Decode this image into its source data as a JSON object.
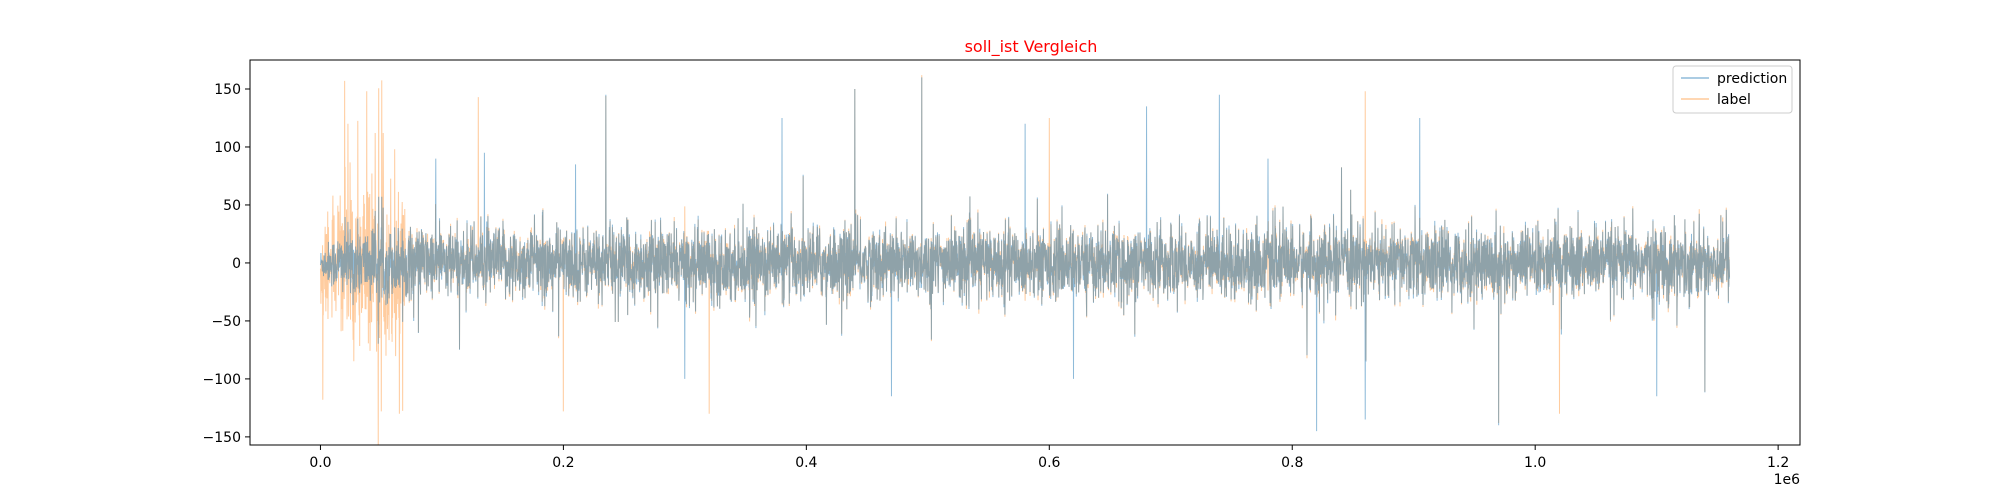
{
  "chart_data": {
    "type": "line",
    "title": "soll_ist Vergleich",
    "title_color": "#ff0000",
    "xlabel": "",
    "ylabel": "",
    "x_offset_label": "1e6",
    "xlim": [
      -0.058,
      1.218
    ],
    "ylim": [
      -157,
      175
    ],
    "x_ticks": [
      0.0,
      0.2,
      0.4,
      0.6,
      0.8,
      1.0,
      1.2
    ],
    "x_tick_labels": [
      "0.0",
      "0.2",
      "0.4",
      "0.6",
      "0.8",
      "1.0",
      "1.2"
    ],
    "y_ticks": [
      -150,
      -100,
      -50,
      0,
      50,
      100,
      150
    ],
    "y_tick_labels": [
      "−150",
      "−100",
      "−50",
      "0",
      "50",
      "100",
      "150"
    ],
    "grid": false,
    "legend_position": "top-right",
    "x_range_data": [
      0.0,
      1.16
    ],
    "series": [
      {
        "name": "prediction",
        "color": "#1f77b4",
        "alpha": 0.5,
        "peaks_x": [
          0.095,
          0.135,
          0.21,
          0.235,
          0.3,
          0.38,
          0.44,
          0.47,
          0.495,
          0.58,
          0.62,
          0.68,
          0.74,
          0.78,
          0.82,
          0.86,
          0.905,
          0.97,
          1.1
        ],
        "peaks_y": [
          90,
          95,
          85,
          145,
          -100,
          125,
          150,
          -115,
          160,
          120,
          -100,
          135,
          145,
          90,
          -145,
          -135,
          125,
          -140,
          -115
        ]
      },
      {
        "name": "label",
        "color": "#ff7f0e",
        "alpha": 0.4,
        "peaks_x": [
          0.002,
          0.02,
          0.038,
          0.05,
          0.065,
          0.13,
          0.2,
          0.235,
          0.32,
          0.44,
          0.495,
          0.6,
          0.86,
          0.97,
          1.02
        ],
        "peaks_y": [
          -118,
          157,
          148,
          -128,
          -130,
          143,
          -128,
          144,
          -130,
          150,
          162,
          125,
          148,
          -138,
          -130
        ]
      }
    ]
  }
}
